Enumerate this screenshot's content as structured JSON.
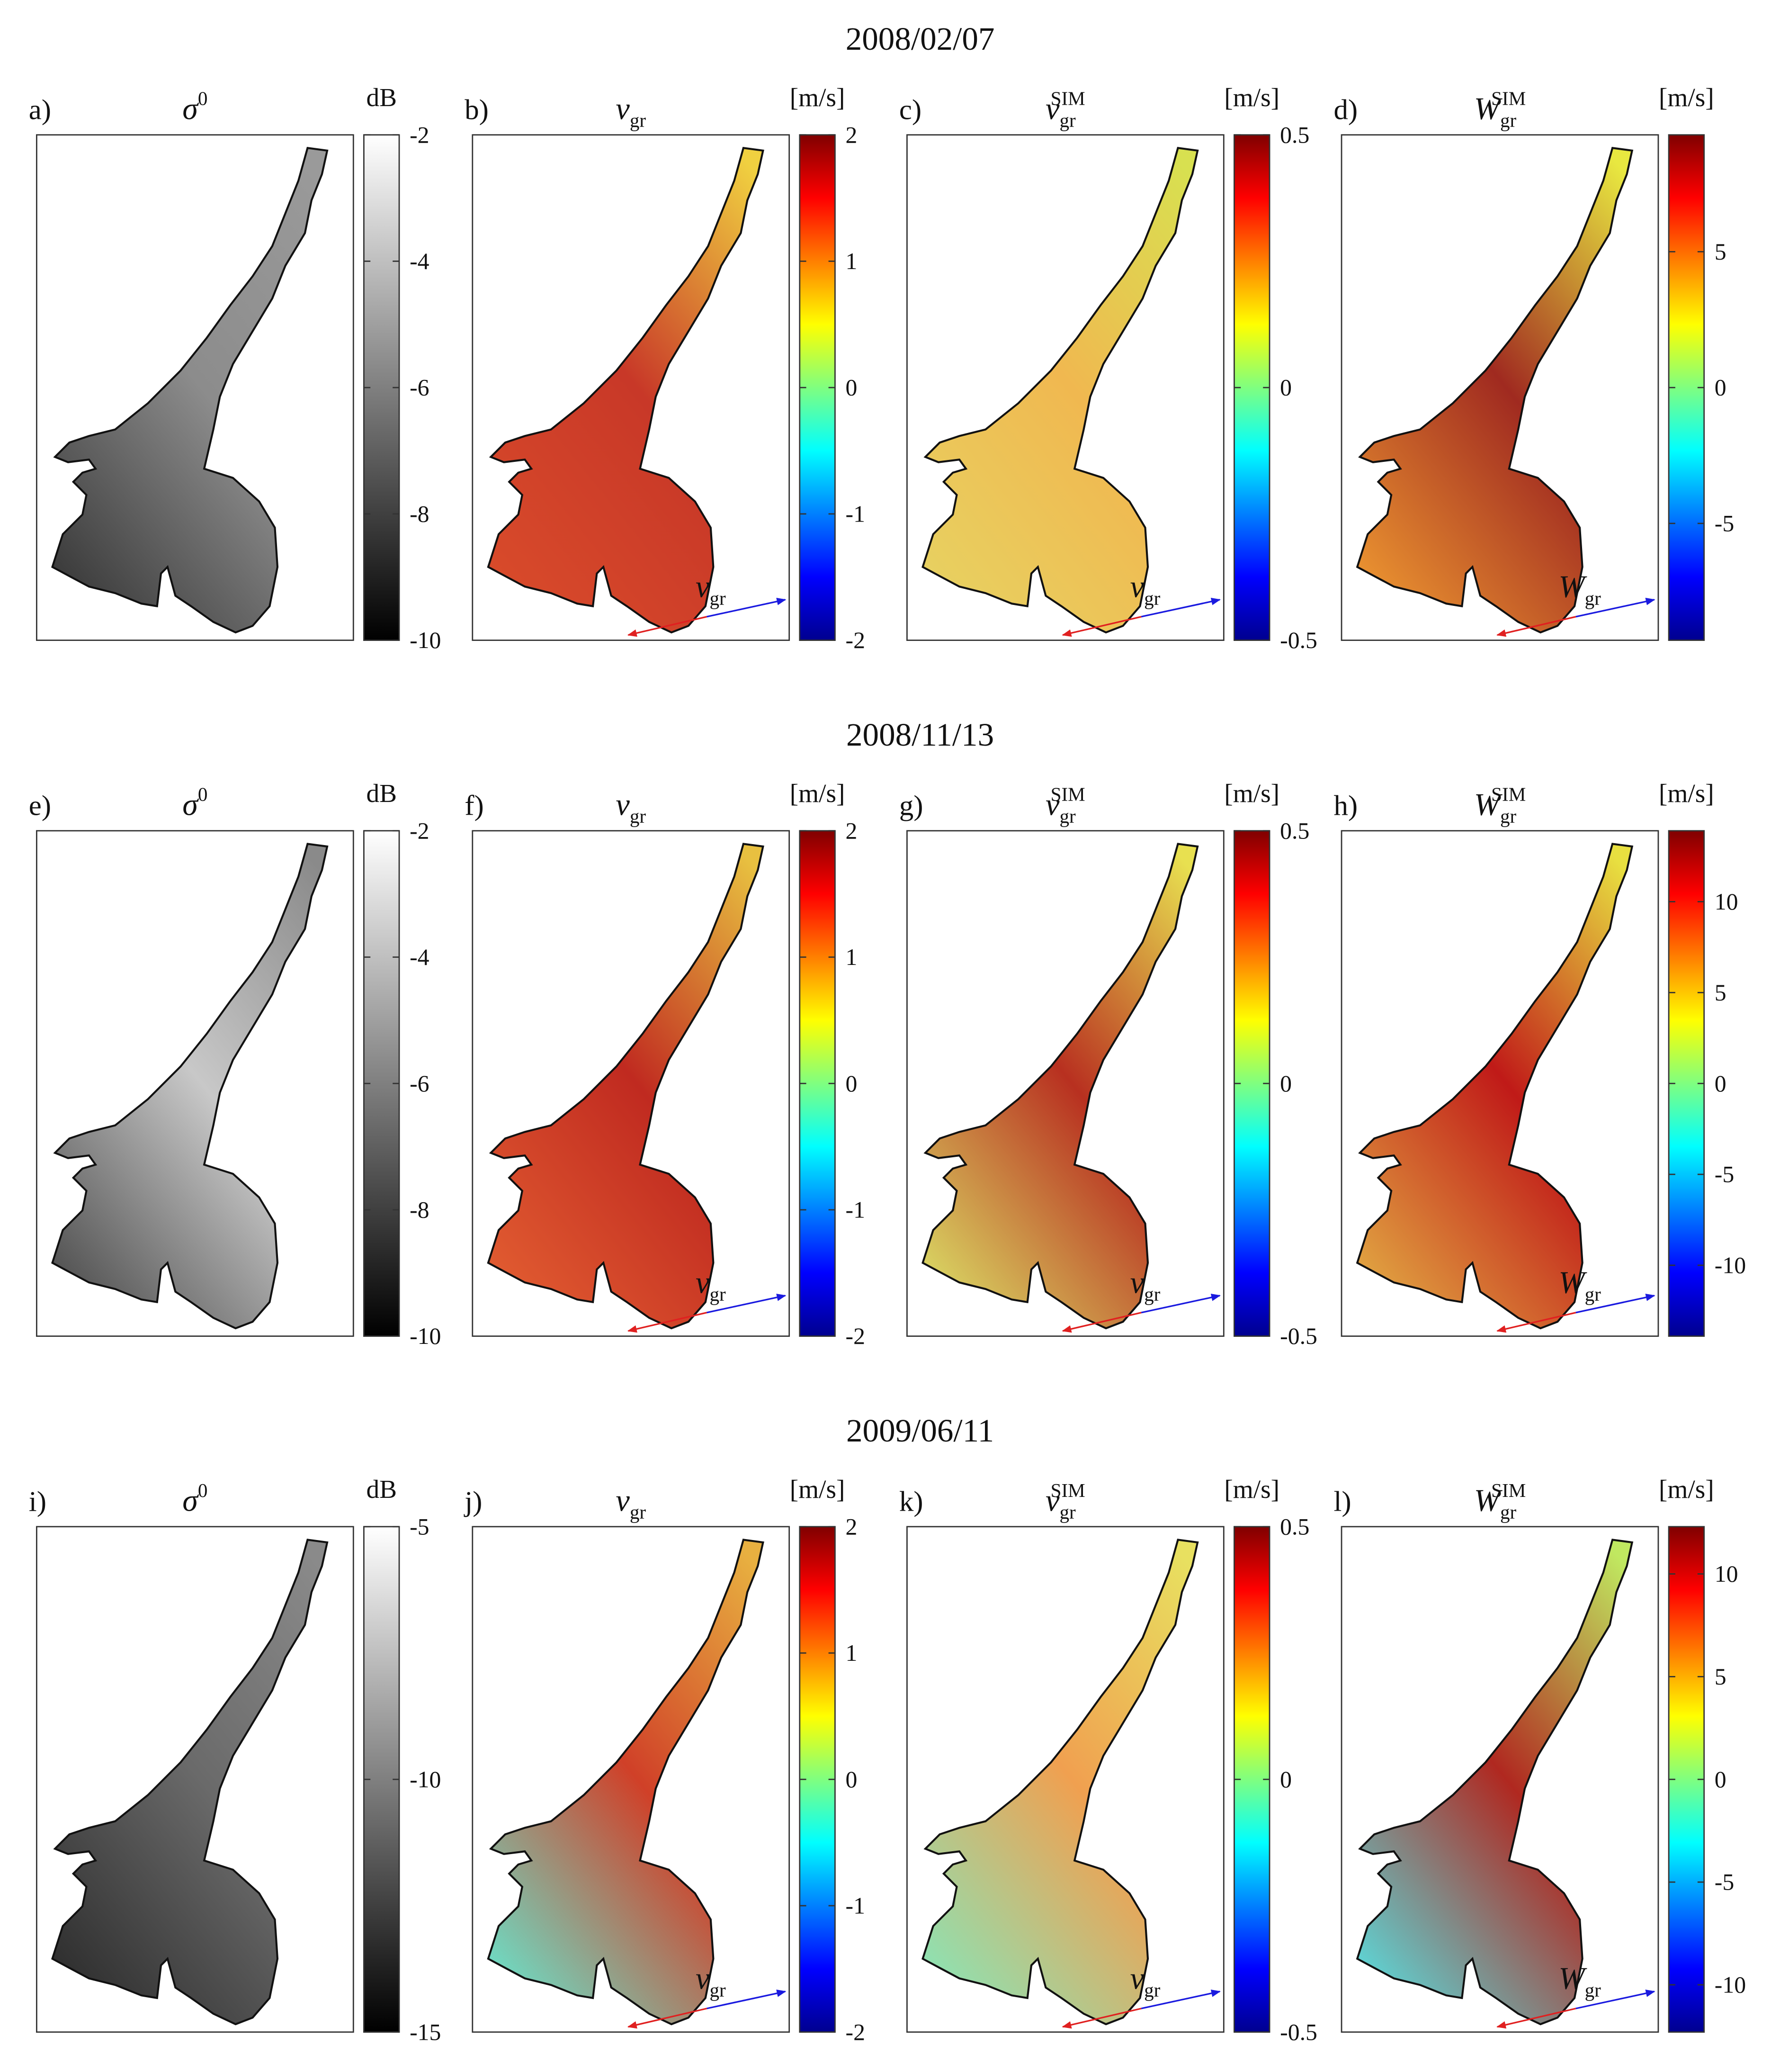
{
  "rows": [
    {
      "date": "2008/02/07",
      "panels": [
        {
          "label": "a)",
          "title": {
            "main": "σ",
            "sup": "0"
          },
          "unit": "dB",
          "colorbar": {
            "lim": [
              -10,
              -2
            ],
            "ticks": [
              -2,
              -4,
              -6,
              -8,
              -10
            ]
          }
        },
        {
          "label": "b)",
          "title": {
            "main": "v",
            "sub": "gr"
          },
          "unit": "[m/s]",
          "colorbar": {
            "lim": [
              -2,
              2
            ],
            "ticks": [
              2,
              1,
              0,
              -1,
              -2
            ]
          },
          "arrow_label": {
            "main": "v",
            "sub": "gr"
          }
        },
        {
          "label": "c)",
          "title": {
            "main": "v",
            "sub": "gr",
            "sup": "SIM"
          },
          "unit": "[m/s]",
          "colorbar": {
            "lim": [
              -0.5,
              0.5
            ],
            "ticks": [
              0.5,
              0,
              -0.5
            ]
          },
          "arrow_label": {
            "main": "v",
            "sub": "gr"
          }
        },
        {
          "label": "d)",
          "title": {
            "main": "W",
            "sub": "gr",
            "sup": "SIM"
          },
          "unit": "[m/s]",
          "colorbar": {
            "lim": [
              -9.3,
              9.3
            ],
            "ticks": [
              5,
              0,
              -5
            ]
          },
          "arrow_label": {
            "main": "W",
            "sub": "gr"
          }
        }
      ]
    },
    {
      "date": "2008/11/13",
      "panels": [
        {
          "label": "e)",
          "title": {
            "main": "σ",
            "sup": "0"
          },
          "unit": "dB",
          "colorbar": {
            "lim": [
              -10,
              -2
            ],
            "ticks": [
              -2,
              -4,
              -6,
              -8,
              -10
            ]
          }
        },
        {
          "label": "f)",
          "title": {
            "main": "v",
            "sub": "gr"
          },
          "unit": "[m/s]",
          "colorbar": {
            "lim": [
              -2,
              2
            ],
            "ticks": [
              2,
              1,
              0,
              -1,
              -2
            ]
          },
          "arrow_label": {
            "main": "v",
            "sub": "gr"
          }
        },
        {
          "label": "g)",
          "title": {
            "main": "v",
            "sub": "gr",
            "sup": "SIM"
          },
          "unit": "[m/s]",
          "colorbar": {
            "lim": [
              -0.5,
              0.5
            ],
            "ticks": [
              0.5,
              0,
              -0.5
            ]
          },
          "arrow_label": {
            "main": "v",
            "sub": "gr"
          }
        },
        {
          "label": "h)",
          "title": {
            "main": "W",
            "sub": "gr",
            "sup": "SIM"
          },
          "unit": "[m/s]",
          "colorbar": {
            "lim": [
              -13.9,
              13.9
            ],
            "ticks": [
              10,
              5,
              0,
              -5,
              -10
            ]
          },
          "arrow_label": {
            "main": "W",
            "sub": "gr"
          }
        }
      ]
    },
    {
      "date": "2009/06/11",
      "panels": [
        {
          "label": "i)",
          "title": {
            "main": "σ",
            "sup": "0"
          },
          "unit": "dB",
          "colorbar": {
            "lim": [
              -15,
              -5
            ],
            "ticks": [
              -5,
              -10,
              -15
            ]
          }
        },
        {
          "label": "j)",
          "title": {
            "main": "v",
            "sub": "gr"
          },
          "unit": "[m/s]",
          "colorbar": {
            "lim": [
              -2,
              2
            ],
            "ticks": [
              2,
              1,
              0,
              -1,
              -2
            ]
          },
          "arrow_label": {
            "main": "v",
            "sub": "gr"
          }
        },
        {
          "label": "k)",
          "title": {
            "main": "v",
            "sub": "gr",
            "sup": "SIM"
          },
          "unit": "[m/s]",
          "colorbar": {
            "lim": [
              -0.5,
              0.5
            ],
            "ticks": [
              0.5,
              0,
              -0.5
            ]
          },
          "arrow_label": {
            "main": "v",
            "sub": "gr"
          }
        },
        {
          "label": "l)",
          "title": {
            "main": "W",
            "sub": "gr",
            "sup": "SIM"
          },
          "unit": "[m/s]",
          "colorbar": {
            "lim": [
              -12.3,
              12.3
            ],
            "ticks": [
              10,
              5,
              0,
              -5,
              -10
            ]
          },
          "arrow_label": {
            "main": "W",
            "sub": "gr"
          }
        }
      ]
    }
  ]
}
